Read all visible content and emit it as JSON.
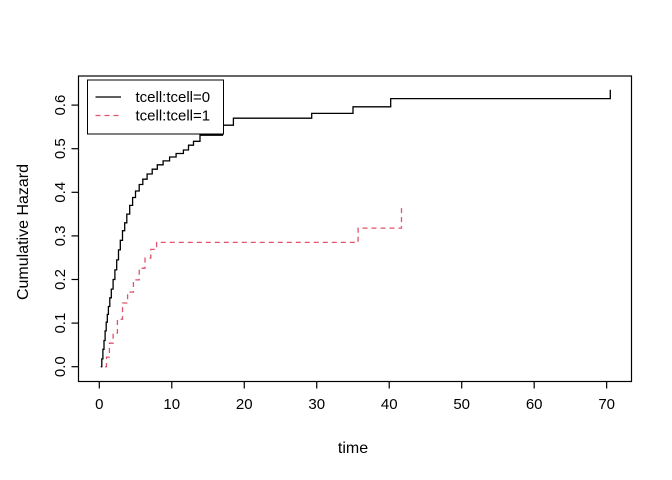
{
  "figure": {
    "background": "#ffffff"
  },
  "chart_data": {
    "type": "line",
    "subtype": "step",
    "title": "",
    "xlabel": "time",
    "ylabel": "Cumulative Hazard",
    "xlim": [
      -2.8,
      72.8
    ],
    "ylim": [
      -0.025,
      0.66
    ],
    "grid": false,
    "x_tick_values": [
      0,
      10,
      20,
      30,
      40,
      50,
      60,
      70
    ],
    "x_tick_labels": [
      "0",
      "10",
      "20",
      "30",
      "40",
      "50",
      "60",
      "70"
    ],
    "y_tick_values": [
      0.0,
      0.1,
      0.2,
      0.3,
      0.4,
      0.5,
      0.6
    ],
    "y_tick_labels": [
      "0.0",
      "0.1",
      "0.2",
      "0.3",
      "0.4",
      "0.5",
      "0.6"
    ],
    "legend": {
      "position": "top-left",
      "entries": [
        "tcell:tcell=0",
        "tcell:tcell=1"
      ]
    },
    "series": [
      {
        "name": "tcell:tcell=0",
        "color": "#000000",
        "linestyle": "solid",
        "points": [
          [
            0.2,
            0.0
          ],
          [
            0.35,
            0.018
          ],
          [
            0.5,
            0.04
          ],
          [
            0.65,
            0.06
          ],
          [
            0.8,
            0.082
          ],
          [
            0.95,
            0.102
          ],
          [
            1.1,
            0.12
          ],
          [
            1.25,
            0.138
          ],
          [
            1.45,
            0.158
          ],
          [
            1.65,
            0.178
          ],
          [
            1.9,
            0.2
          ],
          [
            2.15,
            0.222
          ],
          [
            2.4,
            0.245
          ],
          [
            2.65,
            0.268
          ],
          [
            2.9,
            0.29
          ],
          [
            3.2,
            0.312
          ],
          [
            3.5,
            0.33
          ],
          [
            3.8,
            0.35
          ],
          [
            4.2,
            0.37
          ],
          [
            4.6,
            0.388
          ],
          [
            5.0,
            0.403
          ],
          [
            5.5,
            0.418
          ],
          [
            6.0,
            0.43
          ],
          [
            6.6,
            0.442
          ],
          [
            7.3,
            0.453
          ],
          [
            8.0,
            0.463
          ],
          [
            8.8,
            0.472
          ],
          [
            9.7,
            0.481
          ],
          [
            10.6,
            0.489
          ],
          [
            11.6,
            0.497
          ],
          [
            12.3,
            0.508
          ],
          [
            13.0,
            0.517
          ],
          [
            13.9,
            0.531
          ],
          [
            17.0,
            0.554
          ],
          [
            18.5,
            0.57
          ],
          [
            29.3,
            0.581
          ],
          [
            35.0,
            0.596
          ],
          [
            40.2,
            0.615
          ],
          [
            70.5,
            0.635
          ]
        ]
      },
      {
        "name": "tcell:tcell=1",
        "color": "#DF536B",
        "linestyle": "dashed",
        "points": [
          [
            0.8,
            0.0
          ],
          [
            1.0,
            0.022
          ],
          [
            1.4,
            0.054
          ],
          [
            1.9,
            0.077
          ],
          [
            2.5,
            0.109
          ],
          [
            3.2,
            0.146
          ],
          [
            3.9,
            0.171
          ],
          [
            4.7,
            0.199
          ],
          [
            5.5,
            0.226
          ],
          [
            6.3,
            0.249
          ],
          [
            7.1,
            0.269
          ],
          [
            7.9,
            0.285
          ],
          [
            35.7,
            0.318
          ],
          [
            41.7,
            0.371
          ]
        ]
      }
    ]
  }
}
